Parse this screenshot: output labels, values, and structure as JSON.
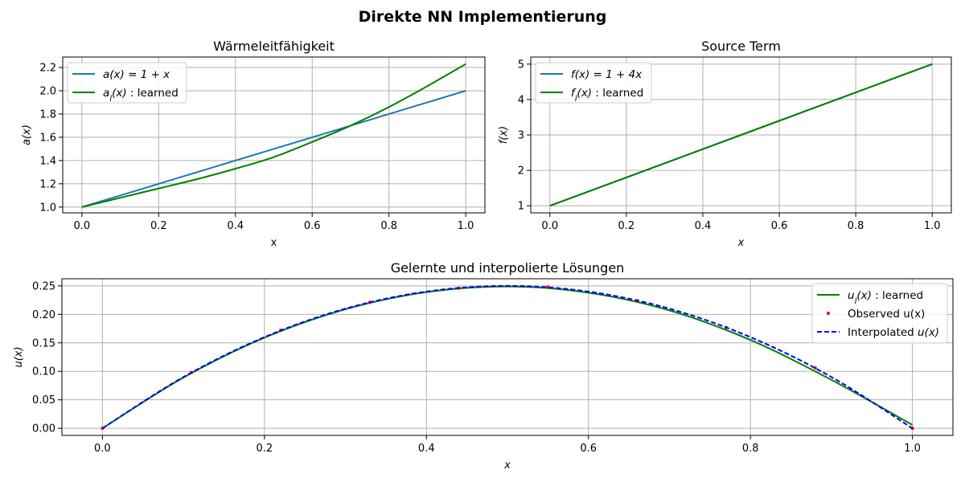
{
  "figure_title": "Direkte NN Implementierung",
  "chart_data": [
    {
      "type": "line",
      "title": "Wärmeleitfähigkeit",
      "xlabel": "x",
      "ylabel": "a(x)",
      "xlim": [
        -0.05,
        1.05
      ],
      "ylim": [
        0.95,
        2.29
      ],
      "xticks": [
        0.0,
        0.2,
        0.4,
        0.6,
        0.8,
        1.0
      ],
      "xtick_labels": [
        "0.0",
        "0.2",
        "0.4",
        "0.6",
        "0.8",
        "1.0"
      ],
      "yticks": [
        1.0,
        1.2,
        1.4,
        1.6,
        1.8,
        2.0,
        2.2
      ],
      "ytick_labels": [
        "1.0",
        "1.2",
        "1.4",
        "1.6",
        "1.8",
        "2.0",
        "2.2"
      ],
      "grid": true,
      "legend_position": "upper-left",
      "series": [
        {
          "name": "a(x) = 1 + x",
          "color": "#1f77b4",
          "style": "solid",
          "x": [
            0.0,
            0.2,
            0.4,
            0.6,
            0.8,
            1.0
          ],
          "y": [
            1.0,
            1.2,
            1.4,
            1.6,
            1.8,
            2.0
          ]
        },
        {
          "name": "a_l(x) : learned",
          "color": "#008000",
          "style": "solid",
          "x": [
            0.0,
            0.1,
            0.2,
            0.3,
            0.4,
            0.5,
            0.6,
            0.7,
            0.8,
            0.9,
            1.0
          ],
          "y": [
            1.0,
            1.08,
            1.16,
            1.24,
            1.33,
            1.43,
            1.56,
            1.7,
            1.86,
            2.04,
            2.23
          ]
        }
      ]
    },
    {
      "type": "line",
      "title": "Source Term",
      "xlabel": "x",
      "ylabel": "f(x)",
      "xlim": [
        -0.05,
        1.05
      ],
      "ylim": [
        0.8,
        5.2
      ],
      "xticks": [
        0.0,
        0.2,
        0.4,
        0.6,
        0.8,
        1.0
      ],
      "xtick_labels": [
        "0.0",
        "0.2",
        "0.4",
        "0.6",
        "0.8",
        "1.0"
      ],
      "yticks": [
        1,
        2,
        3,
        4,
        5
      ],
      "ytick_labels": [
        "1",
        "2",
        "3",
        "4",
        "5"
      ],
      "grid": true,
      "legend_position": "upper-left",
      "series": [
        {
          "name": "f(x) = 1 + 4x",
          "color": "#1f77b4",
          "style": "solid",
          "x": [
            0.0,
            1.0
          ],
          "y": [
            1.0,
            5.0
          ]
        },
        {
          "name": "f_l(x) : learned",
          "color": "#008000",
          "style": "solid",
          "x": [
            0.0,
            1.0
          ],
          "y": [
            1.0,
            5.0
          ]
        }
      ]
    },
    {
      "type": "line",
      "title": "Gelernte und interpolierte Lösungen",
      "xlabel": "x",
      "ylabel": "u(x)",
      "xlim": [
        -0.05,
        1.05
      ],
      "ylim": [
        -0.0125,
        0.2625
      ],
      "xticks": [
        0.0,
        0.2,
        0.4,
        0.6,
        0.8,
        1.0
      ],
      "xtick_labels": [
        "0.0",
        "0.2",
        "0.4",
        "0.6",
        "0.8",
        "1.0"
      ],
      "yticks": [
        0.0,
        0.05,
        0.1,
        0.15,
        0.2,
        0.25
      ],
      "ytick_labels": [
        "0.00",
        "0.05",
        "0.10",
        "0.15",
        "0.20",
        "0.25"
      ],
      "grid": true,
      "legend_position": "upper-right",
      "series": [
        {
          "name": "u_l(x) : learned",
          "color": "#008000",
          "style": "solid",
          "x": [
            0.0,
            0.1,
            0.2,
            0.3,
            0.4,
            0.5,
            0.6,
            0.7,
            0.8,
            0.9,
            1.0
          ],
          "y": [
            0.0,
            0.089,
            0.159,
            0.209,
            0.239,
            0.249,
            0.238,
            0.207,
            0.155,
            0.085,
            0.006
          ]
        },
        {
          "name": "Observed u(x)",
          "color": "#ff0000",
          "style": "points",
          "x": [
            0.0,
            0.11,
            0.22,
            0.33,
            0.44,
            0.55,
            0.66,
            0.77,
            0.88,
            1.0
          ],
          "y": [
            0.0,
            0.098,
            0.172,
            0.221,
            0.246,
            0.248,
            0.224,
            0.177,
            0.106,
            0.0
          ]
        },
        {
          "name": "Interpolated u(x)",
          "color": "#0000ff",
          "style": "dashed",
          "x": [
            0.0,
            0.1,
            0.2,
            0.3,
            0.4,
            0.5,
            0.6,
            0.7,
            0.8,
            0.9,
            1.0
          ],
          "y": [
            0.0,
            0.09,
            0.16,
            0.21,
            0.24,
            0.25,
            0.24,
            0.21,
            0.16,
            0.09,
            0.0
          ]
        }
      ]
    }
  ],
  "legend_labels": {
    "p1": [
      {
        "math": "a(x) = 1 + x",
        "text": ""
      },
      {
        "math": "a",
        "sub": "l",
        "math2": "(x)",
        "text": " : learned"
      }
    ],
    "p2": [
      {
        "math": "f(x) = 1 + 4x",
        "text": ""
      },
      {
        "math": "f",
        "sub": "l",
        "math2": "(x)",
        "text": " : learned"
      }
    ],
    "p3": [
      {
        "math": "u",
        "sub": "l",
        "math2": "(x)",
        "text": " : learned"
      },
      {
        "math": "",
        "text": "Observed u(x)"
      },
      {
        "math": "",
        "text": "Interpolated ",
        "math_after": "u(x)"
      }
    ]
  }
}
